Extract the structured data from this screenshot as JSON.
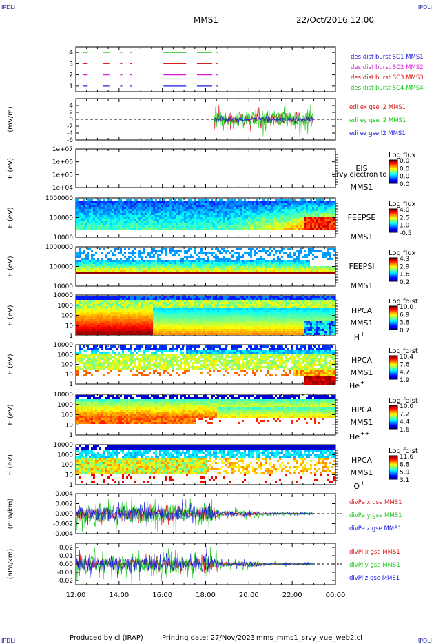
{
  "header": {
    "corner_label": "IPDLI",
    "mission": "MMS1",
    "datetime": "22/Oct/2016 12:00"
  },
  "footer": {
    "produced_by": "Produced by cl (IRAP)",
    "printing_date": "Printing date: 27/Nov/2023",
    "filename": "mms_mms1_srvy_vue_web2.cl"
  },
  "chart_data": [
    {
      "type": "line",
      "panel": "burst-intervals",
      "ylim": [
        0.5,
        4.5
      ],
      "yticks": [
        "1",
        "2",
        "3",
        "4"
      ],
      "legend_placement": "right",
      "series": [
        {
          "name": "des dist burst SC1 MMS1",
          "level": 1,
          "color": "#1a1ae0",
          "segments": [
            [
              12.35,
              12.55
            ],
            [
              13.25,
              13.55
            ],
            [
              14.05,
              14.15
            ],
            [
              14.5,
              14.6
            ],
            [
              16.05,
              17.1
            ],
            [
              17.6,
              18.3
            ],
            [
              18.5,
              18.55
            ]
          ]
        },
        {
          "name": "des dist burst SC2 MMS2",
          "level": 2,
          "color": "#d81ad8",
          "segments": [
            [
              12.35,
              12.55
            ],
            [
              13.25,
              13.55
            ],
            [
              14.05,
              14.15
            ],
            [
              14.5,
              14.6
            ],
            [
              16.05,
              17.1
            ],
            [
              17.6,
              18.3
            ],
            [
              18.5,
              18.55
            ]
          ]
        },
        {
          "name": "des dist burst SC3 MMS3",
          "level": 3,
          "color": "#d81a1a",
          "segments": [
            [
              12.35,
              12.55
            ],
            [
              13.25,
              13.55
            ],
            [
              14.05,
              14.15
            ],
            [
              14.5,
              14.6
            ],
            [
              16.05,
              17.1
            ],
            [
              17.6,
              18.3
            ],
            [
              18.5,
              18.55
            ]
          ]
        },
        {
          "name": "des dist burst SC4 MMS4",
          "level": 4,
          "color": "#1ac81a",
          "segments": [
            [
              12.35,
              12.55
            ],
            [
              13.25,
              13.55
            ],
            [
              14.05,
              14.15
            ],
            [
              14.5,
              14.6
            ],
            [
              16.05,
              17.1
            ],
            [
              17.6,
              18.3
            ],
            [
              18.5,
              18.55
            ]
          ]
        }
      ]
    },
    {
      "type": "line",
      "panel": "electric-field",
      "ylabel": "(mV/m)",
      "ylim": [
        -6,
        6
      ],
      "yticks": [
        "-6",
        "-4",
        "-2",
        "0",
        "2",
        "4"
      ],
      "data_range_hours": [
        18.4,
        23.0
      ],
      "series": [
        {
          "name": "edi ex gse l2 MMS1",
          "color": "#d81a1a",
          "amplitude": 3
        },
        {
          "name": "edi ey gse l2 MMS1",
          "color": "#1ac81a",
          "amplitude": 4
        },
        {
          "name": "edi ez gse l2 MMS1",
          "color": "#1a1ae0",
          "amplitude": 1
        }
      ]
    },
    {
      "type": "heatmap",
      "panel": "eis",
      "ylabel": "E (eV)",
      "yticks": [
        "1e+07",
        "1e+06",
        "1e+05",
        "1e+04"
      ],
      "yscale": "log",
      "instrument": [
        "EIS",
        "MMS1"
      ],
      "overlay_text": "Srvy electron to",
      "colorbar": {
        "title": "Log flux",
        "ticks": [
          "0.0",
          "0.0",
          "0.0",
          "0.0"
        ]
      }
    },
    {
      "type": "heatmap",
      "panel": "feeps-electrons",
      "ylabel": "E (eV)",
      "yticks": [
        "1000000",
        "100000",
        "10000"
      ],
      "yscale": "log",
      "instrument": [
        "FEEPSE",
        "MMS1"
      ],
      "colorbar": {
        "title": "Log flux",
        "ticks": [
          "4.0",
          "2.5",
          "1.0",
          "-0.5"
        ]
      }
    },
    {
      "type": "heatmap",
      "panel": "feeps-ions",
      "ylabel": "E (eV)",
      "yticks": [
        "1000000",
        "100000",
        "10000"
      ],
      "yscale": "log",
      "instrument": [
        "FEEPSI",
        "MMS1"
      ],
      "colorbar": {
        "title": "Log flux",
        "ticks": [
          "4.3",
          "2.9",
          "1.6",
          "0.2"
        ]
      }
    },
    {
      "type": "heatmap",
      "panel": "hpca-h",
      "ylabel": "E (eV)",
      "yticks": [
        "10000",
        "1000",
        "100",
        "10",
        "1"
      ],
      "yscale": "log",
      "instrument": [
        "HPCA",
        "MMS1"
      ],
      "species": {
        "base": "H",
        "sup": "+"
      },
      "colorbar": {
        "title": "Log fdist",
        "ticks": [
          "10.0",
          "6.9",
          "3.8",
          "0.7"
        ]
      }
    },
    {
      "type": "heatmap",
      "panel": "hpca-he",
      "ylabel": "E (eV)",
      "yticks": [
        "10000",
        "1000",
        "100",
        "10",
        "1"
      ],
      "yscale": "log",
      "instrument": [
        "HPCA",
        "MMS1"
      ],
      "species": {
        "base": "He",
        "sup": "+"
      },
      "colorbar": {
        "title": "Log fdist",
        "ticks": [
          "10.4",
          "7.6",
          "4.7",
          "1.9"
        ]
      }
    },
    {
      "type": "heatmap",
      "panel": "hpca-hepp",
      "ylabel": "E (eV)",
      "yticks": [
        "10000",
        "1000",
        "100",
        "10",
        "1"
      ],
      "yscale": "log",
      "instrument": [
        "HPCA",
        "MMS1"
      ],
      "species": {
        "base": "He",
        "sup": "++"
      },
      "colorbar": {
        "title": "Log fdist",
        "ticks": [
          "10.0",
          "7.2",
          "4.4",
          "1.6"
        ]
      }
    },
    {
      "type": "heatmap",
      "panel": "hpca-o",
      "ylabel": "E (eV)",
      "yticks": [
        "10000",
        "1000",
        "100",
        "10",
        "1"
      ],
      "yscale": "log",
      "instrument": [
        "HPCA",
        "MMS1"
      ],
      "species": {
        "base": "O",
        "sup": "+"
      },
      "colorbar": {
        "title": "Log fdist",
        "ticks": [
          "11.6",
          "8.8",
          "5.9",
          "3.1"
        ]
      }
    },
    {
      "type": "line",
      "panel": "grad-pe",
      "ylabel": "(nPa/km)",
      "ylim": [
        -0.004,
        0.004
      ],
      "yticks": [
        "-0.004",
        "-0.002",
        "0.000",
        "0.002",
        "0.004"
      ],
      "data_range_hours": [
        12.0,
        23.0
      ],
      "series": [
        {
          "name": "divPe x gse MMS1",
          "color": "#d81a1a",
          "amplitude": 0.0015
        },
        {
          "name": "divPe y gse MMS1",
          "color": "#1ac81a",
          "amplitude": 0.0025
        },
        {
          "name": "divPe z gse MMS1",
          "color": "#1a1ae0",
          "amplitude": 0.0018
        }
      ]
    },
    {
      "type": "line",
      "panel": "grad-pi",
      "ylabel": "(nPa/km)",
      "ylim": [
        -0.025,
        0.025
      ],
      "yticks": [
        "-0.02",
        "-0.01",
        "0.00",
        "0.01",
        "0.02"
      ],
      "data_range_hours": [
        12.0,
        23.0
      ],
      "series": [
        {
          "name": "divPi x gse MMS1",
          "color": "#d81a1a",
          "amplitude": 0.008
        },
        {
          "name": "divPi y gse MMS1",
          "color": "#1ac81a",
          "amplitude": 0.014
        },
        {
          "name": "divPi z gse MMS1",
          "color": "#1a1ae0",
          "amplitude": 0.012
        }
      ]
    }
  ],
  "time_axis": {
    "range_hours": [
      12,
      24
    ],
    "ticks": [
      {
        "value": 12,
        "label": "12:00"
      },
      {
        "value": 14,
        "label": "14:00"
      },
      {
        "value": 16,
        "label": "16:00"
      },
      {
        "value": 18,
        "label": "18:00"
      },
      {
        "value": 20,
        "label": "20:00"
      },
      {
        "value": 22,
        "label": "22:00"
      },
      {
        "value": 24,
        "label": "00:00"
      }
    ]
  }
}
